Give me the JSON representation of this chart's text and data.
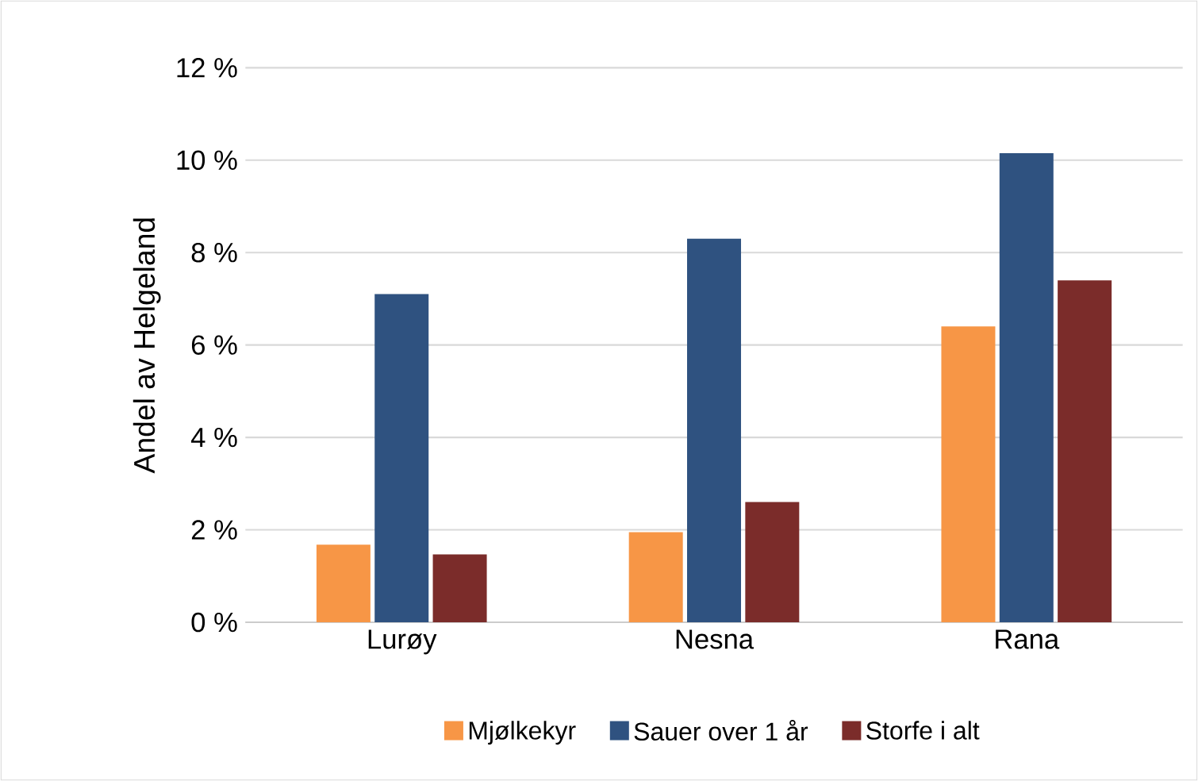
{
  "chart_data": {
    "type": "bar",
    "ylabel": "Andel av Helgeland",
    "categories": [
      "Lurøy",
      "Nesna",
      "Rana"
    ],
    "series": [
      {
        "name": "Mjølkekyr",
        "color": "#f79646",
        "values": [
          1.68,
          1.95,
          6.4
        ]
      },
      {
        "name": "Sauer over 1 år",
        "color": "#2f5280",
        "values": [
          7.1,
          8.3,
          10.15
        ]
      },
      {
        "name": "Storfe i alt",
        "color": "#7b2c2a",
        "values": [
          1.47,
          2.6,
          7.4
        ]
      }
    ],
    "ylim": [
      0,
      12
    ],
    "yticks": [
      {
        "value": 0,
        "label": "0 %"
      },
      {
        "value": 2,
        "label": "2 %"
      },
      {
        "value": 4,
        "label": "4 %"
      },
      {
        "value": 6,
        "label": "6 %"
      },
      {
        "value": 8,
        "label": "8 %"
      },
      {
        "value": 10,
        "label": "10 %"
      },
      {
        "value": 12,
        "label": "12 %"
      }
    ],
    "grid": "y",
    "legend": "bottom"
  }
}
